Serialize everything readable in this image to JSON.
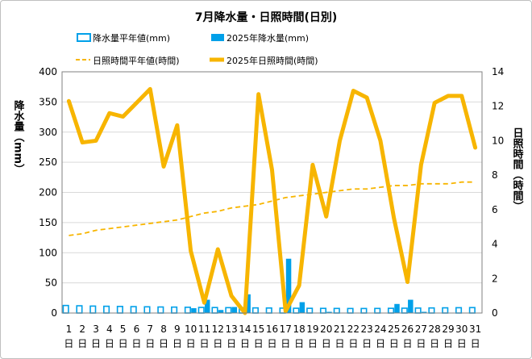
{
  "chart_data": {
    "type": "bar+line",
    "title": "7月降水量・日照時間(日別)",
    "categories": [
      "1",
      "2",
      "3",
      "4",
      "5",
      "6",
      "7",
      "8",
      "9",
      "10",
      "11",
      "12",
      "13",
      "14",
      "15",
      "16",
      "17",
      "18",
      "19",
      "20",
      "21",
      "22",
      "23",
      "24",
      "25",
      "26",
      "27",
      "28",
      "29",
      "30",
      "31"
    ],
    "category_sublabel": "日",
    "ylabel_left": "降水量（mm）",
    "ylabel_right": "日照時間（時間）",
    "ylim_left": [
      0,
      400
    ],
    "yticks_left": [
      0,
      50,
      100,
      150,
      200,
      250,
      300,
      350,
      400
    ],
    "ylim_right": [
      0,
      14
    ],
    "yticks_right": [
      0,
      2,
      4,
      6,
      8,
      10,
      12,
      14
    ],
    "grid": "horizontal",
    "legend_placement": "top",
    "series": [
      {
        "name": "降水量平年値(mm)",
        "type": "bar",
        "style": "outlined",
        "axis": "left",
        "color": "#00a0e9",
        "values": [
          12.5,
          12,
          11.5,
          11.2,
          10.9,
          10.6,
          10.3,
          10,
          9.8,
          9.5,
          9.3,
          9.1,
          8.9,
          8.7,
          8.5,
          8.3,
          8.1,
          7.9,
          7.8,
          7.7,
          7.6,
          7.5,
          7.5,
          7.6,
          7.8,
          8,
          8.2,
          8.4,
          8.6,
          8.8,
          9
        ]
      },
      {
        "name": "2025年降水量(mm)",
        "type": "bar",
        "style": "filled",
        "axis": "left",
        "color": "#00a0e9",
        "values": [
          0,
          0,
          0,
          0,
          0,
          0,
          0,
          0,
          0,
          8,
          22,
          5,
          10,
          31,
          0,
          0,
          90,
          18,
          0,
          2,
          0,
          0,
          0,
          0,
          15,
          22,
          2,
          0,
          0,
          0,
          0
        ]
      },
      {
        "name": "日照時間平年値(時間)",
        "type": "line",
        "style": "dashed",
        "axis": "right",
        "color": "#f7b500",
        "values": [
          4.5,
          4.6,
          4.8,
          4.9,
          5.0,
          5.1,
          5.2,
          5.3,
          5.4,
          5.6,
          5.8,
          5.9,
          6.1,
          6.2,
          6.3,
          6.5,
          6.7,
          6.8,
          6.9,
          7.0,
          7.1,
          7.2,
          7.2,
          7.3,
          7.4,
          7.4,
          7.5,
          7.5,
          7.5,
          7.6,
          7.6
        ]
      },
      {
        "name": "2025年日照時間(時間)",
        "type": "line",
        "style": "solid",
        "axis": "right",
        "color": "#f7b500",
        "values": [
          12.3,
          9.9,
          10.0,
          11.6,
          11.4,
          12.2,
          13.0,
          8.5,
          10.9,
          3.6,
          0.6,
          3.7,
          1.0,
          0.0,
          12.7,
          8.3,
          0.1,
          1.6,
          8.6,
          5.6,
          10.0,
          12.9,
          12.5,
          10.0,
          5.5,
          1.8,
          8.6,
          12.2,
          12.6,
          12.6,
          9.6
        ]
      }
    ]
  }
}
